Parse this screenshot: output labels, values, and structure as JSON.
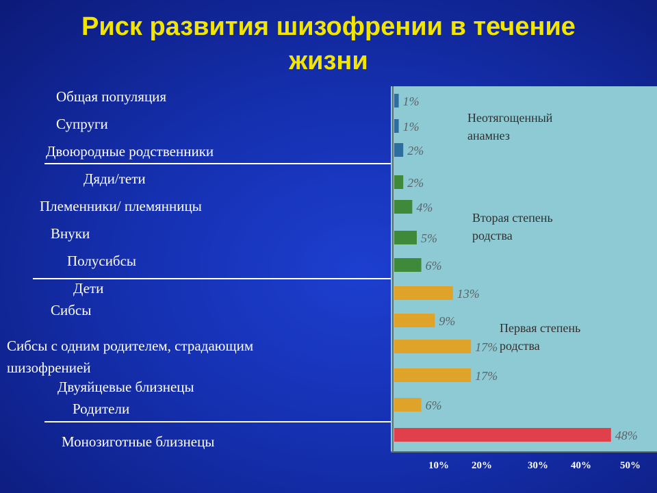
{
  "title": {
    "line1": "Риск развития шизофрении в течение",
    "line2": "жизни"
  },
  "colors": {
    "background": "#1530b0",
    "title": "#f2e600",
    "panel": "#8ecad3",
    "group_none": "#2e6e9e",
    "group_second": "#3e8a3a",
    "group_first": "#e0a32a",
    "group_mz": "#e0404a"
  },
  "chart_data": {
    "type": "bar",
    "orientation": "horizontal",
    "x_unit": "%",
    "xlim": [
      0,
      50
    ],
    "x_tick_labels": [
      "10%",
      "20%",
      "30%",
      "40%",
      "50%"
    ],
    "categories": [
      "Общая популяция",
      "Супруги",
      "Двоюродные родственники",
      "Дяди/тети",
      "Племенники/ племянницы",
      "Внуки",
      "Полусибсы",
      "Дети",
      "Сибсы",
      "Сибсы с одним родителем, страдающим шизофренией",
      "Двуяйцевые близнецы",
      "Родители",
      "Монозиготные близнецы"
    ],
    "values": [
      1,
      1,
      2,
      2,
      4,
      5,
      6,
      13,
      9,
      17,
      17,
      6,
      48
    ],
    "value_labels": [
      "1%",
      "1%",
      "2%",
      "2%",
      "4%",
      "5%",
      "6%",
      "13%",
      "9%",
      "17%",
      "17%",
      "6%",
      "48%"
    ],
    "groups": [
      {
        "label": "Неотягощенный анамнез",
        "color_key": "group_none",
        "indices": [
          0,
          1,
          2
        ]
      },
      {
        "label": "Вторая степень родства",
        "color_key": "group_second",
        "indices": [
          3,
          4,
          5,
          6
        ]
      },
      {
        "label": "Первая степень родства",
        "color_key": "group_first",
        "indices": [
          7,
          8,
          9,
          10,
          11
        ]
      },
      {
        "label": "",
        "color_key": "group_mz",
        "indices": [
          12
        ]
      }
    ],
    "annotations": [
      {
        "line1": "Неотягощенный",
        "line2": "анамнез"
      },
      {
        "line1": "Вторая степень",
        "line2": "родства"
      },
      {
        "line1": "Первая степень",
        "line2": "родства"
      }
    ]
  }
}
